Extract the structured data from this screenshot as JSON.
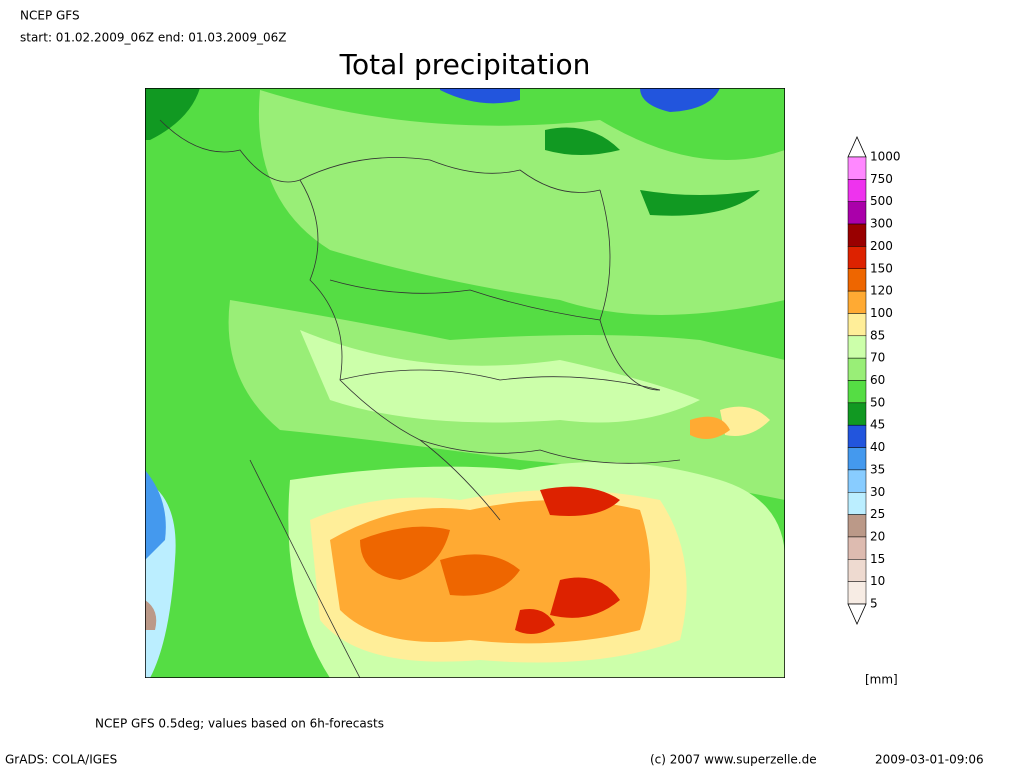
{
  "header": {
    "model": "NCEP GFS",
    "period": "start: 01.02.2009_06Z end: 01.03.2009_06Z",
    "title": "Total precipitation"
  },
  "legend": {
    "levels": [
      1000,
      750,
      500,
      300,
      200,
      150,
      120,
      100,
      85,
      70,
      60,
      50,
      45,
      40,
      35,
      30,
      25,
      20,
      15,
      10,
      5
    ],
    "colors": [
      "#ff88ff",
      "#ee33ee",
      "#aa00aa",
      "#990000",
      "#dd2200",
      "#ee6600",
      "#ffaa33",
      "#ffee99",
      "#ccffaa",
      "#99ee77",
      "#55dd44",
      "#119922",
      "#2255dd",
      "#4499ee",
      "#88ccff",
      "#bbeeff",
      "#bb9988",
      "#ddbbb0",
      "#eedad0",
      "#f7ece4"
    ],
    "unit": "[mm]"
  },
  "footer": {
    "note": "NCEP GFS 0.5deg; values based on 6h-forecasts",
    "software": "GrADS: COLA/IGES",
    "copyright": "(c) 2007 www.superzelle.de",
    "timestamp": "2009-03-01-09:06"
  }
}
